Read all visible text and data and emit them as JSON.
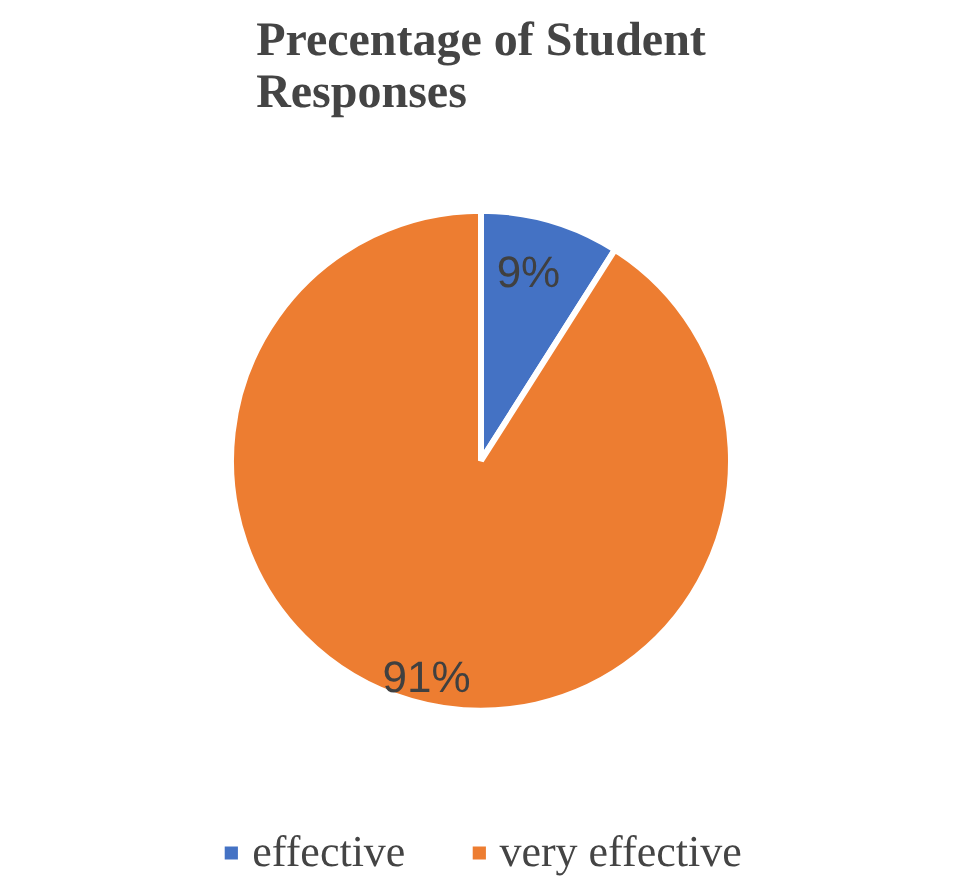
{
  "chart_data": {
    "type": "pie",
    "title": "Precentage of Student Responses",
    "categories": [
      "effective",
      "very effective"
    ],
    "values": [
      9,
      91
    ],
    "colors": [
      "#4472c4",
      "#ed7d31"
    ],
    "value_labels": [
      "9%",
      "91%"
    ],
    "legend": "bottom"
  }
}
